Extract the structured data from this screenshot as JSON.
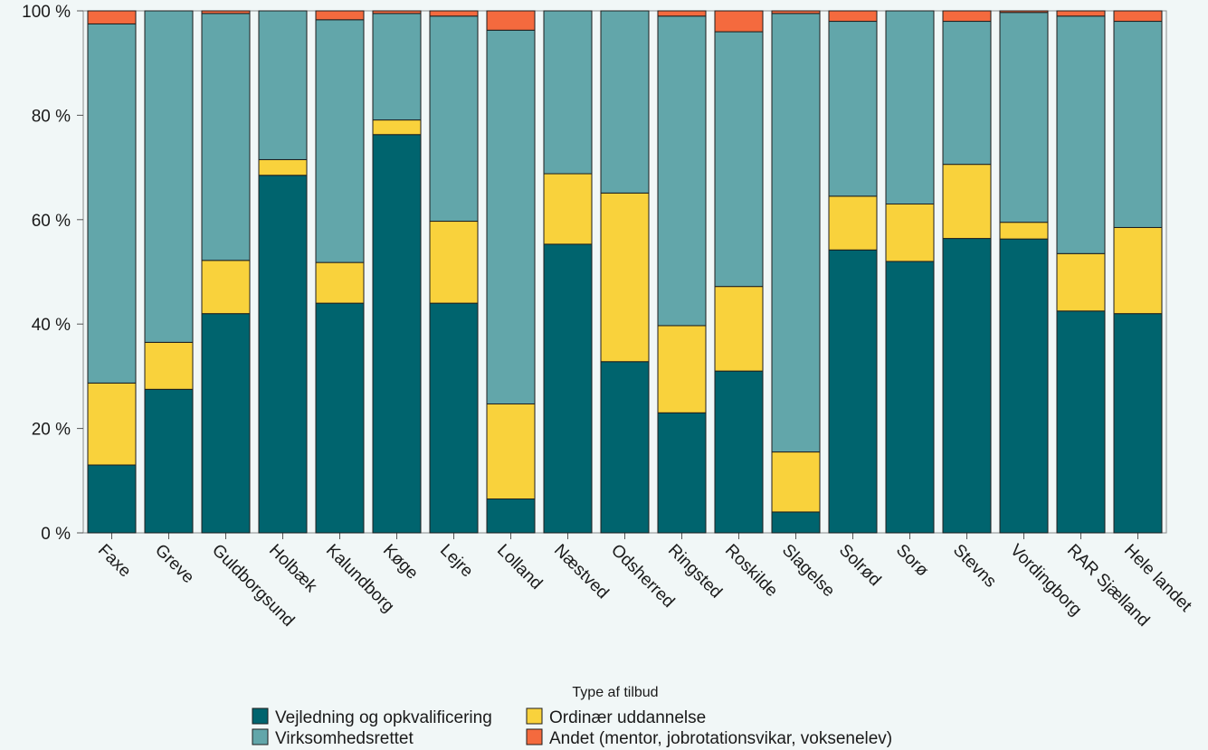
{
  "chart_data": {
    "type": "bar",
    "stacked": true,
    "orientation": "vertical",
    "title": "",
    "xlabel": "",
    "ylabel": "",
    "ylim": [
      0,
      100
    ],
    "yticks": [
      0,
      20,
      40,
      60,
      80,
      100
    ],
    "ytick_suffix": " %",
    "grid": false,
    "legend": {
      "title": "Type af tilbud",
      "placement": "bottom"
    },
    "categories": [
      "Faxe",
      "Greve",
      "Guldborgsund",
      "Holbæk",
      "Kalundborg",
      "Køge",
      "Lejre",
      "Lolland",
      "Næstved",
      "Odsherred",
      "Ringsted",
      "Roskilde",
      "Slagelse",
      "Solrød",
      "Sorø",
      "Stevns",
      "Vordingborg",
      "RAR Sjælland",
      "Hele landet"
    ],
    "series": [
      {
        "name": "Vejledning og opkvalificering",
        "color": "#00646e",
        "values": [
          13,
          27.5,
          42,
          68.5,
          44,
          76.3,
          44,
          6.5,
          55.3,
          32.8,
          23,
          31,
          4,
          54.2,
          52,
          56.4,
          56.3,
          42.5,
          42
        ]
      },
      {
        "name": "Ordinær uddannelse",
        "color": "#f9d23c",
        "values": [
          15.7,
          9,
          10.2,
          3,
          7.8,
          2.8,
          15.7,
          18.2,
          13.5,
          32.3,
          16.7,
          16.2,
          11.5,
          10.3,
          11,
          14.2,
          3.2,
          11,
          16.5
        ]
      },
      {
        "name": "Virksomhedsrettet",
        "color": "#62a6aa",
        "values": [
          68.8,
          63.5,
          47.3,
          28.5,
          46.5,
          20.4,
          39.3,
          71.6,
          31.2,
          34.9,
          59.3,
          48.8,
          84,
          33.5,
          37,
          27.4,
          40.2,
          45.5,
          39.5
        ]
      },
      {
        "name": "Andet (mentor, jobrotationsvikar, voksenelev)",
        "color": "#f46a3e",
        "values": [
          2.5,
          0,
          0.5,
          0,
          1.7,
          0.5,
          1,
          3.7,
          0,
          0,
          1,
          4,
          0.5,
          2,
          0,
          2,
          0.3,
          1,
          2
        ]
      }
    ]
  }
}
